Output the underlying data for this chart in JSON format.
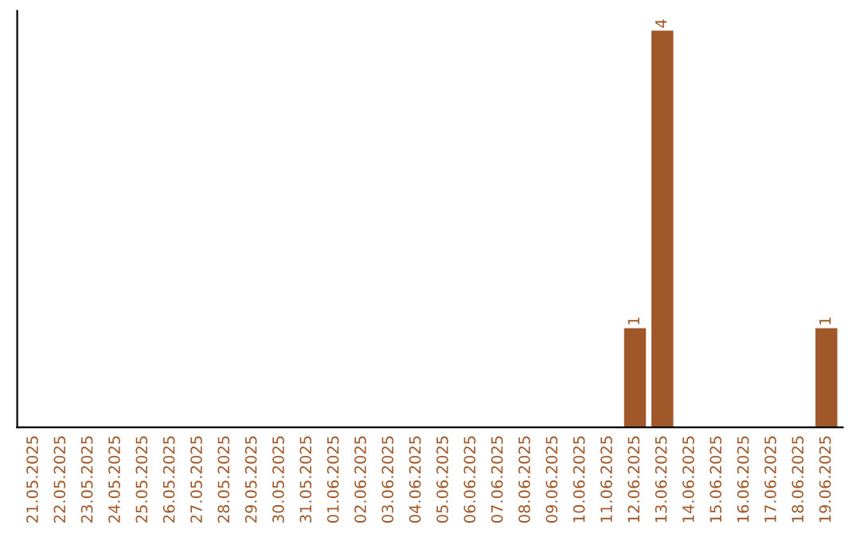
{
  "chart_data": {
    "type": "bar",
    "categories": [
      "21.05.2025",
      "22.05.2025",
      "23.05.2025",
      "24.05.2025",
      "25.05.2025",
      "26.05.2025",
      "27.05.2025",
      "28.05.2025",
      "29.05.2025",
      "30.05.2025",
      "31.05.2025",
      "01.06.2025",
      "02.06.2025",
      "03.06.2025",
      "04.06.2025",
      "05.06.2025",
      "06.06.2025",
      "07.06.2025",
      "08.06.2025",
      "09.06.2025",
      "10.06.2025",
      "11.06.2025",
      "12.06.2025",
      "13.06.2025",
      "14.06.2025",
      "15.06.2025",
      "16.06.2025",
      "17.06.2025",
      "18.06.2025",
      "19.06.2025"
    ],
    "values": [
      null,
      null,
      null,
      null,
      null,
      null,
      null,
      null,
      null,
      null,
      null,
      null,
      null,
      null,
      null,
      null,
      null,
      null,
      null,
      null,
      null,
      null,
      1,
      4,
      null,
      null,
      null,
      null,
      null,
      1
    ],
    "data_labels": true,
    "color": "#a0582a",
    "tick_labels": "x",
    "grid": false,
    "legend": false
  }
}
